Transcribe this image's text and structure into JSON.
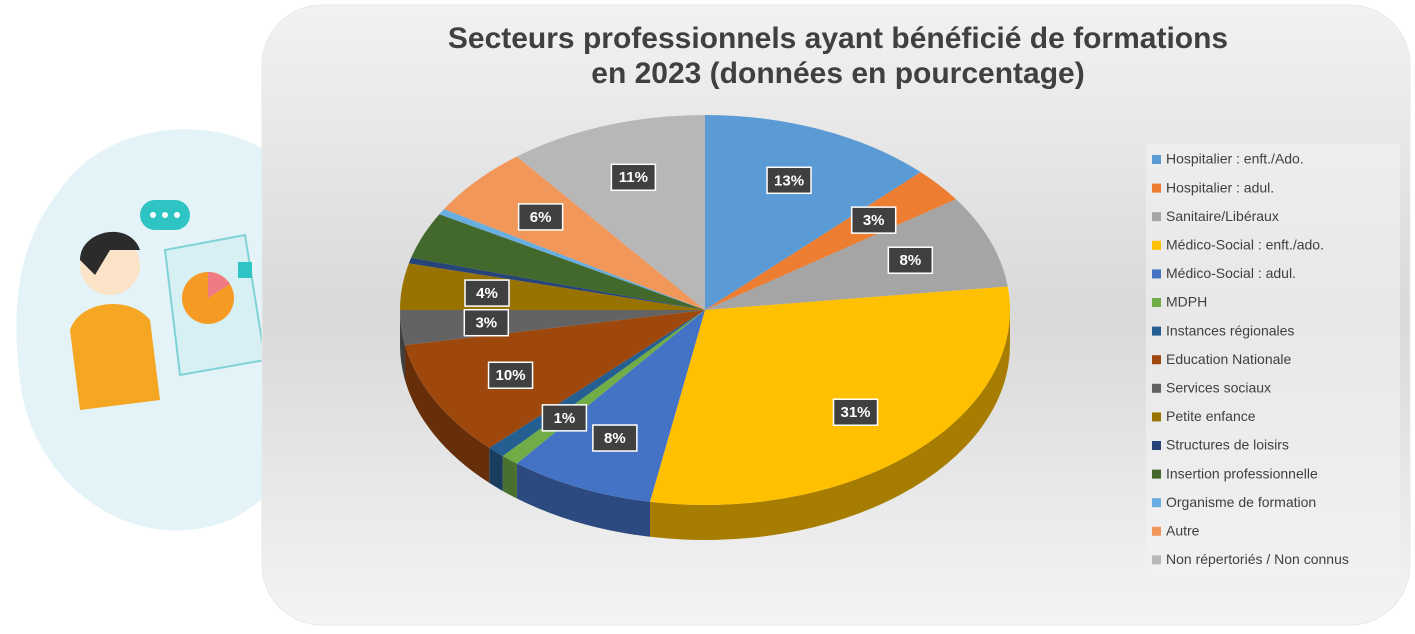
{
  "chart_data": {
    "type": "pie",
    "title": "Secteurs professionnels ayant bénéficié de formations",
    "subtitle": "en 2023 (données en pourcentage)",
    "categories": [
      "Hospitalier : enft./Ado.",
      "Hospitalier : adul.",
      "Sanitaire/Libéraux",
      "Médico-Social : enft./ado.",
      "Médico-Social : adul.",
      "MDPH",
      "Instances régionales",
      "Education Nationale",
      "Services sociaux",
      "Petite enfance",
      "Structures de loisirs",
      "Insertion professionnelle",
      "Organisme de formation",
      "Autre",
      "Non répertoriés / Non connus"
    ],
    "values": [
      13,
      3,
      8,
      31,
      8,
      1,
      1,
      10,
      3,
      4,
      0.5,
      4,
      0.5,
      6,
      11
    ],
    "value_labels": [
      "13%",
      "3%",
      "8%",
      "31%",
      "8%",
      "1%",
      null,
      "10%",
      "3%",
      "4%",
      null,
      null,
      null,
      "6%",
      "11%"
    ],
    "colors": [
      "#5b9bd5",
      "#ed7d31",
      "#a5a5a5",
      "#ffc000",
      "#4472c4",
      "#70ad47",
      "#255e91",
      "#9e480e",
      "#636363",
      "#997300",
      "#264478",
      "#43682b",
      "#69aee0",
      "#f1975a",
      "#b7b7b7"
    ],
    "legend": "right"
  }
}
